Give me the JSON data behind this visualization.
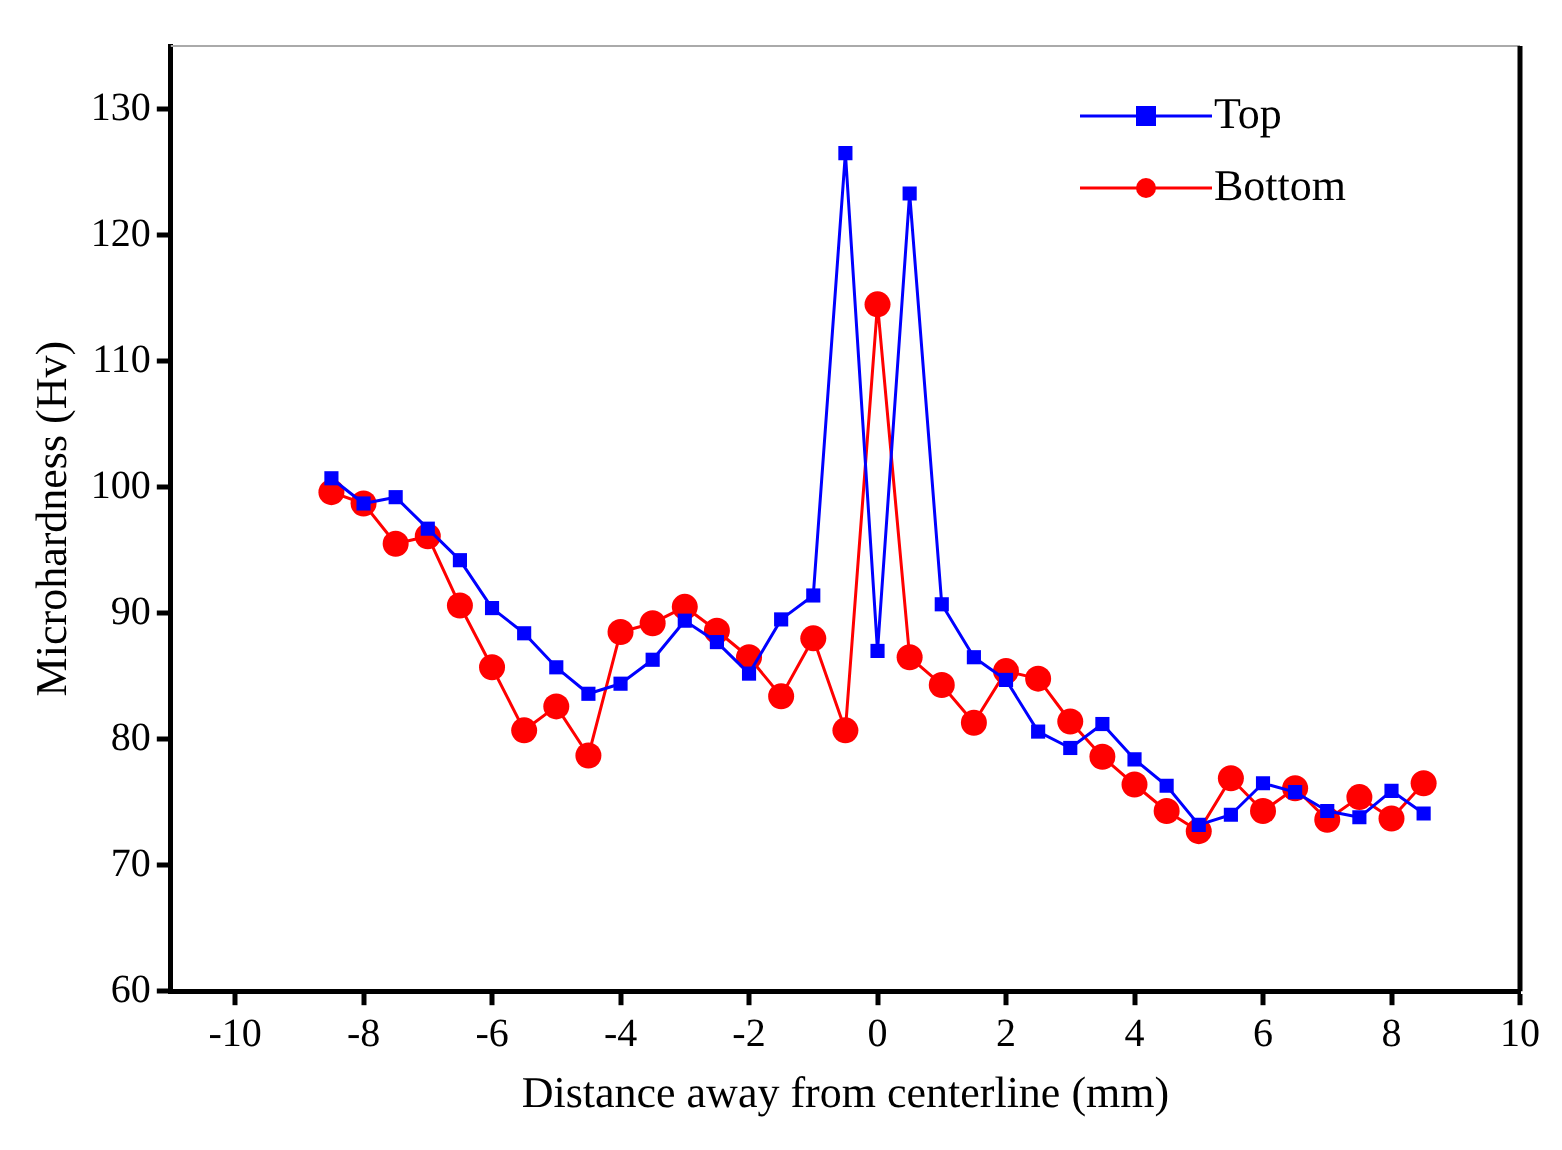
{
  "chart_data": {
    "type": "line",
    "xlabel": "Distance away from centerline (mm)",
    "ylabel": "Microhardness (Hv)",
    "x": [
      -8.5,
      -8,
      -7.5,
      -7,
      -6.5,
      -6,
      -5.5,
      -5,
      -4.5,
      -4,
      -3.5,
      -3,
      -2.5,
      -2,
      -1.5,
      -1,
      -0.5,
      0,
      0.5,
      1,
      1.5,
      2,
      2.5,
      3,
      3.5,
      4,
      4.5,
      5,
      5.5,
      6,
      6.5,
      7,
      7.5,
      8,
      8.5
    ],
    "series": [
      {
        "name": "Top",
        "color": "#0000ff",
        "marker": "square",
        "values": [
          100.7,
          98.7,
          99.2,
          96.7,
          94.2,
          90.4,
          88.4,
          85.7,
          83.6,
          84.4,
          86.3,
          89.4,
          87.7,
          85.2,
          89.5,
          91.4,
          126.5,
          87,
          123.3,
          90.7,
          86.5,
          84.7,
          80.6,
          79.3,
          81.2,
          78.4,
          76.3,
          73.2,
          74,
          76.5,
          75.8,
          74.3,
          73.8,
          75.9,
          74.1
        ]
      },
      {
        "name": "Bottom",
        "color": "#ff0000",
        "marker": "circle",
        "values": [
          99.6,
          98.7,
          95.5,
          96.1,
          90.6,
          85.7,
          80.7,
          82.6,
          78.7,
          88.5,
          89.2,
          90.5,
          88.6,
          86.5,
          83.4,
          88,
          80.7,
          114.5,
          86.5,
          84.3,
          81.3,
          85.4,
          84.8,
          81.4,
          78.6,
          76.4,
          74.3,
          72.7,
          76.9,
          74.3,
          76.1,
          73.6,
          75.4,
          73.7,
          76.5
        ]
      }
    ],
    "xlim": [
      -11,
      10
    ],
    "xticks": [
      -10,
      -8,
      -6,
      -4,
      -2,
      0,
      2,
      4,
      6,
      8,
      10
    ],
    "ylim": [
      60,
      135
    ],
    "yticks": [
      60,
      70,
      80,
      90,
      100,
      110,
      120,
      130
    ],
    "grid": false,
    "legend": "top right",
    "line_style": "solid"
  }
}
